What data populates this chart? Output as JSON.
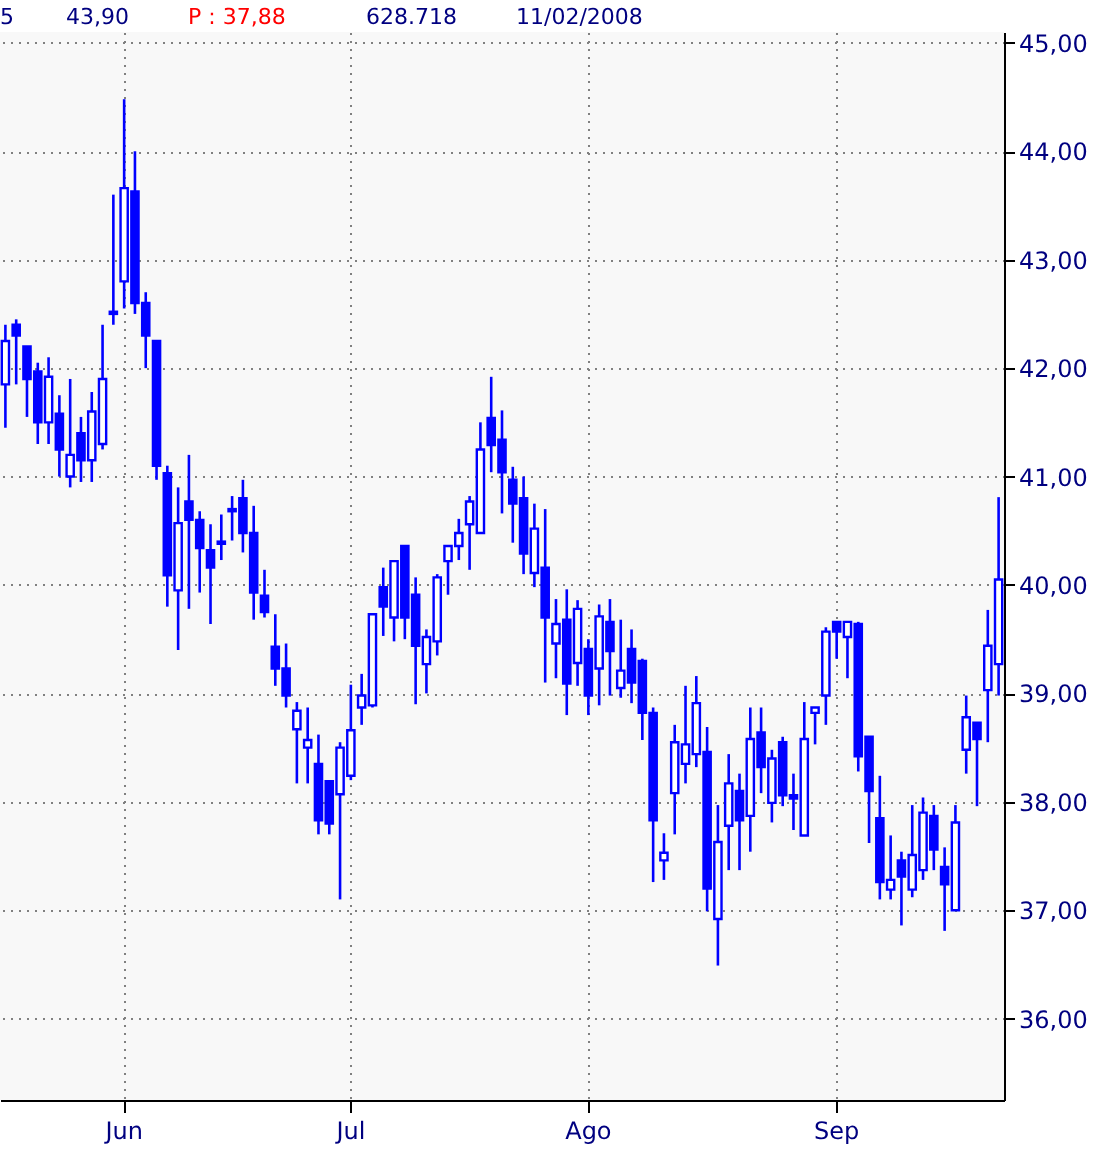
{
  "chart_data": {
    "type": "candlestick",
    "color": "#0000ff",
    "grid": true,
    "annotations": [
      "5",
      "43,90",
      "P : 37,88",
      "628.718",
      "11/02/2008"
    ],
    "categories": [
      null,
      null,
      null,
      null,
      null,
      null,
      null,
      null,
      null,
      null,
      null,
      "Jun",
      null,
      null,
      null,
      null,
      null,
      null,
      null,
      null,
      null,
      null,
      null,
      null,
      null,
      null,
      null,
      null,
      null,
      null,
      null,
      null,
      "Jul",
      null,
      null,
      null,
      null,
      null,
      null,
      null,
      null,
      null,
      null,
      null,
      null,
      null,
      null,
      null,
      null,
      null,
      null,
      null,
      null,
      null,
      "Ago",
      null,
      null,
      null,
      null,
      null,
      null,
      null,
      null,
      null,
      null,
      null,
      null,
      null,
      null,
      null,
      null,
      null,
      null,
      null,
      null,
      null,
      null,
      "Sep",
      null,
      null,
      null,
      null,
      null,
      null,
      null,
      null,
      null,
      null,
      null,
      null,
      null,
      null,
      null
    ],
    "ohlc": [
      [
        41.85,
        42.4,
        41.45,
        42.25
      ],
      [
        42.4,
        42.45,
        41.85,
        42.3
      ],
      [
        42.2,
        42.2,
        41.55,
        41.9
      ],
      [
        41.97,
        42.05,
        41.3,
        41.5
      ],
      [
        41.5,
        42.1,
        41.3,
        41.92
      ],
      [
        41.58,
        41.75,
        41.0,
        41.25
      ],
      [
        41.0,
        41.9,
        40.9,
        41.2
      ],
      [
        41.4,
        41.55,
        40.95,
        41.15
      ],
      [
        41.15,
        41.78,
        40.95,
        41.6
      ],
      [
        41.3,
        42.4,
        41.25,
        41.9
      ],
      [
        42.5,
        43.6,
        42.4,
        42.52
      ],
      [
        42.8,
        44.48,
        42.55,
        43.66
      ],
      [
        43.63,
        44.0,
        42.5,
        42.6
      ],
      [
        42.6,
        42.7,
        42.0,
        42.3
      ],
      [
        42.25,
        42.25,
        40.97,
        41.1
      ],
      [
        41.03,
        41.1,
        39.8,
        40.09
      ],
      [
        39.95,
        40.9,
        39.4,
        40.57
      ],
      [
        40.77,
        41.2,
        39.78,
        40.6
      ],
      [
        40.6,
        40.68,
        39.93,
        40.34
      ],
      [
        40.32,
        40.56,
        39.64,
        40.16
      ],
      [
        40.4,
        40.65,
        40.23,
        40.38
      ],
      [
        40.7,
        40.82,
        40.41,
        40.68
      ],
      [
        40.8,
        40.97,
        40.3,
        40.48
      ],
      [
        40.48,
        40.73,
        39.68,
        39.93
      ],
      [
        39.9,
        40.14,
        39.7,
        39.75
      ],
      [
        39.43,
        39.73,
        39.07,
        39.23
      ],
      [
        39.23,
        39.46,
        38.87,
        38.98
      ],
      [
        38.67,
        38.92,
        38.17,
        38.84
      ],
      [
        38.5,
        38.87,
        38.17,
        38.57
      ],
      [
        38.35,
        38.62,
        37.7,
        37.83
      ],
      [
        38.19,
        38.2,
        37.7,
        37.8
      ],
      [
        38.07,
        38.55,
        37.1,
        38.5
      ],
      [
        38.24,
        39.08,
        38.2,
        38.66
      ],
      [
        38.87,
        39.18,
        38.71,
        38.98
      ],
      [
        38.89,
        39.73,
        38.87,
        39.73
      ],
      [
        39.98,
        40.16,
        39.53,
        39.8
      ],
      [
        39.7,
        40.23,
        39.48,
        40.22
      ],
      [
        40.36,
        40.36,
        39.5,
        39.7
      ],
      [
        39.91,
        40.07,
        38.9,
        39.44
      ],
      [
        39.27,
        39.59,
        39.0,
        39.52
      ],
      [
        39.48,
        40.1,
        39.35,
        40.07
      ],
      [
        40.22,
        40.36,
        39.91,
        40.36
      ],
      [
        40.36,
        40.61,
        40.23,
        40.48
      ],
      [
        40.56,
        40.82,
        40.14,
        40.77
      ],
      [
        40.48,
        41.5,
        40.47,
        41.25
      ],
      [
        41.54,
        41.92,
        41.04,
        41.29
      ],
      [
        41.34,
        41.61,
        40.66,
        41.04
      ],
      [
        40.97,
        41.09,
        40.39,
        40.75
      ],
      [
        40.8,
        41.0,
        40.1,
        40.29
      ],
      [
        40.11,
        40.75,
        39.98,
        40.52
      ],
      [
        40.16,
        40.7,
        39.1,
        39.7
      ],
      [
        39.46,
        39.87,
        39.14,
        39.64
      ],
      [
        39.68,
        39.96,
        38.8,
        39.09
      ],
      [
        39.28,
        39.86,
        39.07,
        39.78
      ],
      [
        39.41,
        39.5,
        38.8,
        38.98
      ],
      [
        39.23,
        39.82,
        38.89,
        39.71
      ],
      [
        39.66,
        39.87,
        38.98,
        39.39
      ],
      [
        39.05,
        39.68,
        38.96,
        39.21
      ],
      [
        39.41,
        39.59,
        38.91,
        39.1
      ],
      [
        39.3,
        39.32,
        38.57,
        38.82
      ],
      [
        38.82,
        38.87,
        37.26,
        37.83
      ],
      [
        37.46,
        37.71,
        37.28,
        37.53
      ],
      [
        38.08,
        38.71,
        37.7,
        38.55
      ],
      [
        38.35,
        39.07,
        38.17,
        38.53
      ],
      [
        38.44,
        39.16,
        38.32,
        38.91
      ],
      [
        38.46,
        38.69,
        36.99,
        37.2
      ],
      [
        36.92,
        37.97,
        36.49,
        37.63
      ],
      [
        37.78,
        38.44,
        37.37,
        38.17
      ],
      [
        38.1,
        38.26,
        37.37,
        37.83
      ],
      [
        37.87,
        38.87,
        37.54,
        38.58
      ],
      [
        38.64,
        38.87,
        38.08,
        38.32
      ],
      [
        37.99,
        38.48,
        37.81,
        38.4
      ],
      [
        38.55,
        38.6,
        37.96,
        38.06
      ],
      [
        38.06,
        38.26,
        37.74,
        38.03
      ],
      [
        37.69,
        38.92,
        37.69,
        38.58
      ],
      [
        38.82,
        38.87,
        38.53,
        38.87
      ],
      [
        38.98,
        39.61,
        38.71,
        39.57
      ],
      [
        39.66,
        39.66,
        39.32,
        39.57
      ],
      [
        39.52,
        39.66,
        39.14,
        39.66
      ],
      [
        39.64,
        39.66,
        38.28,
        38.42
      ],
      [
        38.6,
        38.6,
        37.62,
        38.1
      ],
      [
        37.85,
        38.24,
        37.1,
        37.26
      ],
      [
        37.19,
        37.69,
        37.1,
        37.28
      ],
      [
        37.46,
        37.54,
        36.86,
        37.31
      ],
      [
        37.19,
        37.97,
        37.12,
        37.51
      ],
      [
        37.37,
        38.04,
        37.28,
        37.9
      ],
      [
        37.87,
        37.97,
        37.37,
        37.56
      ],
      [
        37.4,
        37.58,
        36.81,
        37.24
      ],
      [
        37.0,
        37.97,
        37.0,
        37.81
      ],
      [
        38.48,
        38.98,
        38.26,
        38.78
      ],
      [
        38.73,
        38.73,
        37.96,
        38.58
      ],
      [
        39.03,
        39.77,
        38.55,
        39.44
      ],
      [
        39.27,
        40.81,
        38.98,
        40.05
      ]
    ],
    "ylim": [
      35.25,
      45.1
    ],
    "yticks": [
      {
        "value": 36,
        "label": "36,00"
      },
      {
        "value": 37,
        "label": "37,00"
      },
      {
        "value": 38,
        "label": "38,00"
      },
      {
        "value": 39,
        "label": "39,00"
      },
      {
        "value": 40,
        "label": "40,00"
      },
      {
        "value": 41,
        "label": "41,00"
      },
      {
        "value": 42,
        "label": "42,00"
      },
      {
        "value": 43,
        "label": "43,00"
      },
      {
        "value": 44,
        "label": "44,00"
      },
      {
        "value": 45,
        "label": "45,00"
      }
    ]
  }
}
